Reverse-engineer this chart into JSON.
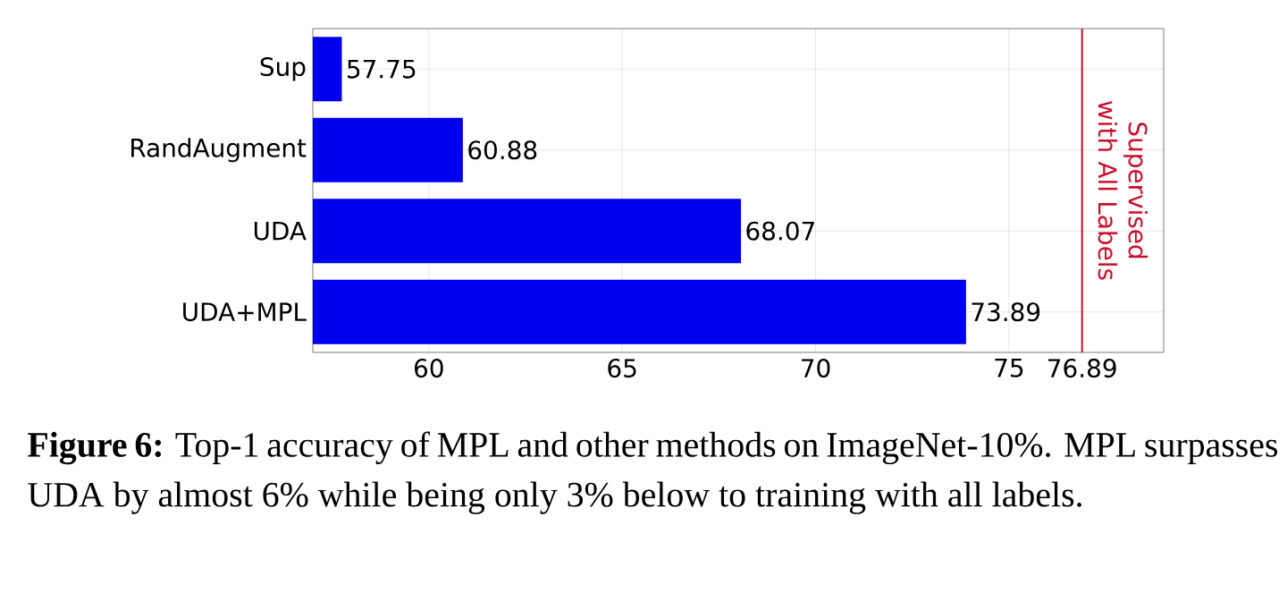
{
  "chart_data": {
    "type": "bar",
    "orientation": "horizontal",
    "categories": [
      "Sup",
      "RandAugment",
      "UDA",
      "UDA+MPL"
    ],
    "values": [
      57.75,
      60.88,
      68.07,
      73.89
    ],
    "color": "#0000f0",
    "data_labels": true,
    "xlim": [
      57,
      79
    ],
    "xticks": [
      60,
      65,
      70,
      75,
      76.89
    ],
    "grid": true,
    "ref_lines": [
      {
        "axis": "x",
        "value": 76.89,
        "label": "Supervised with All Labels",
        "color": "#c8102e"
      }
    ],
    "annotations": [
      "**Figure 6:** Top-1 accuracy of MPL and other methods on ImageNet-10%. MPL surpasses UDA by almost 6% while being only 3% below to training with all labels."
    ]
  }
}
